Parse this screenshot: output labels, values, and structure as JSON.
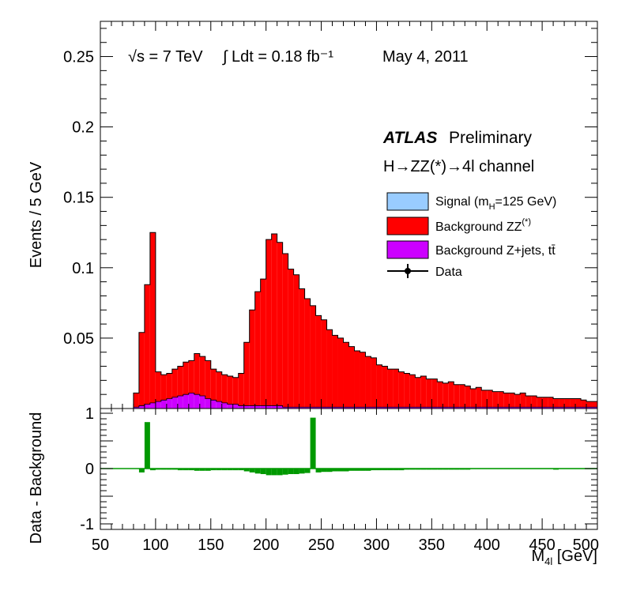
{
  "header": {
    "sqrt_s_label": "√s = 7 TeV",
    "lumi_label": "∫ Ldt = 0.18 fb⁻¹",
    "date_label": "May  4, 2011",
    "atlas_label": "ATLAS",
    "preliminary_label": "Preliminary",
    "channel_label": "H→ZZ(*)→4l channel"
  },
  "chart_data": [
    {
      "type": "bar",
      "stacked": true,
      "ylabel": "Events / 5 GeV",
      "xlim": [
        50,
        500
      ],
      "ylim": [
        0,
        0.275
      ],
      "y_ticks": [
        "0.05",
        "0.1",
        "0.15",
        "0.2",
        "0.25"
      ],
      "y_tick_values": [
        0.05,
        0.1,
        0.15,
        0.2,
        0.25
      ],
      "bin_width": 5,
      "x_bin_low": [
        80,
        85,
        90,
        95,
        100,
        105,
        110,
        115,
        120,
        125,
        130,
        135,
        140,
        145,
        150,
        155,
        160,
        165,
        170,
        175,
        180,
        185,
        190,
        195,
        200,
        205,
        210,
        215,
        220,
        225,
        230,
        235,
        240,
        245,
        250,
        255,
        260,
        265,
        270,
        275,
        280,
        285,
        290,
        295,
        300,
        305,
        310,
        315,
        320,
        325,
        330,
        335,
        340,
        345,
        350,
        355,
        360,
        365,
        370,
        375,
        380,
        385,
        390,
        395,
        400,
        405,
        410,
        415,
        420,
        425,
        430,
        435,
        440,
        445,
        450,
        455,
        460,
        465,
        470,
        475,
        480,
        485,
        490,
        495
      ],
      "series": [
        {
          "name": "Background Z+jets, tt̄",
          "color": "#cc00ff",
          "values": [
            0.001,
            0.002,
            0.003,
            0.004,
            0.005,
            0.006,
            0.007,
            0.008,
            0.009,
            0.01,
            0.011,
            0.01,
            0.009,
            0.007,
            0.006,
            0.005,
            0.004,
            0.003,
            0.003,
            0.002,
            0.002,
            0.002,
            0.002,
            0.002,
            0.002,
            0.002,
            0.002,
            0.001,
            0.001,
            0.001,
            0.001,
            0.001,
            0.001,
            0.001,
            0.001,
            0.001,
            0.001,
            0.001,
            0.001,
            0.001,
            0.001,
            0.001,
            0.001,
            0.001,
            0.001,
            0.001,
            0.001,
            0.001,
            0.001,
            0.001,
            0.001,
            0.001,
            0.001,
            0.001,
            0.001,
            0.001,
            0.001,
            0.001,
            0.001,
            0.001,
            0.001,
            0.001,
            0.001,
            0.001,
            0.001,
            0.001,
            0.001,
            0.001,
            0.001,
            0.001,
            0.001,
            0.001,
            0.001,
            0.001,
            0.001,
            0.001,
            0.001,
            0.001,
            0.001,
            0.001,
            0.001,
            0.001,
            0.001,
            0.001
          ]
        },
        {
          "name": "Background ZZ(*)",
          "color": "#ff0000",
          "values": [
            0.01,
            0.052,
            0.085,
            0.121,
            0.021,
            0.018,
            0.018,
            0.02,
            0.021,
            0.023,
            0.023,
            0.029,
            0.028,
            0.027,
            0.022,
            0.021,
            0.02,
            0.02,
            0.019,
            0.023,
            0.045,
            0.068,
            0.081,
            0.09,
            0.118,
            0.122,
            0.116,
            0.109,
            0.098,
            0.094,
            0.084,
            0.077,
            0.072,
            0.065,
            0.062,
            0.055,
            0.051,
            0.049,
            0.046,
            0.043,
            0.04,
            0.039,
            0.036,
            0.035,
            0.03,
            0.029,
            0.027,
            0.027,
            0.025,
            0.024,
            0.023,
            0.021,
            0.022,
            0.02,
            0.02,
            0.018,
            0.017,
            0.018,
            0.016,
            0.016,
            0.015,
            0.013,
            0.014,
            0.012,
            0.012,
            0.011,
            0.011,
            0.01,
            0.01,
            0.009,
            0.01,
            0.008,
            0.008,
            0.007,
            0.007,
            0.007,
            0.006,
            0.006,
            0.006,
            0.006,
            0.006,
            0.005,
            0.004,
            0.004
          ]
        },
        {
          "name": "Signal (mH=125 GeV)",
          "color": "#99ccff",
          "values": []
        }
      ],
      "legend": {
        "position": "right",
        "entries": [
          {
            "label": "Signal (m",
            "sub": "H",
            "tail": "=125 GeV)",
            "color": "#99ccff",
            "kind": "box"
          },
          {
            "label": "Background ZZ",
            "sup": "(*)",
            "tail": "",
            "color": "#ff0000",
            "kind": "box"
          },
          {
            "label": "Background Z+jets, tt̄",
            "color": "#cc00ff",
            "kind": "box"
          },
          {
            "label": "Data",
            "color": "#000000",
            "kind": "marker"
          }
        ]
      }
    },
    {
      "type": "bar",
      "ylabel": "Data - Background",
      "xlabel": "M4l [GeV]",
      "xlim": [
        50,
        500
      ],
      "ylim": [
        -1.2,
        1.2
      ],
      "x_ticks": [
        "50",
        "100",
        "150",
        "200",
        "250",
        "300",
        "350",
        "400",
        "450",
        "500"
      ],
      "x_tick_values": [
        50,
        100,
        150,
        200,
        250,
        300,
        350,
        400,
        450,
        500
      ],
      "y_ticks": [
        "1",
        "0",
        "-1"
      ],
      "y_tick_values": [
        1,
        0,
        -1
      ],
      "series": [
        {
          "name": "",
          "color": "#009900",
          "x_bin_low": [
            85,
            90,
            95,
            100,
            105,
            110,
            115,
            120,
            125,
            130,
            135,
            140,
            145,
            150,
            155,
            160,
            165,
            170,
            175,
            180,
            185,
            190,
            195,
            200,
            205,
            210,
            215,
            220,
            225,
            230,
            235,
            240,
            245,
            250,
            255,
            260,
            265,
            270,
            275,
            280,
            285,
            290,
            295,
            300,
            305,
            310,
            315,
            320,
            325,
            330,
            335,
            340,
            345,
            350,
            355,
            360,
            365,
            370,
            375,
            380,
            385,
            390,
            395,
            400,
            405,
            410,
            415,
            420,
            425,
            430,
            435,
            440,
            445,
            450,
            455,
            460,
            465,
            470,
            475,
            480,
            485,
            490,
            495
          ],
          "values": [
            -0.07,
            0.84,
            -0.03,
            -0.02,
            -0.02,
            -0.02,
            -0.02,
            -0.03,
            -0.03,
            -0.03,
            -0.04,
            -0.04,
            -0.04,
            -0.03,
            -0.03,
            -0.03,
            -0.03,
            -0.03,
            -0.03,
            -0.05,
            -0.07,
            -0.09,
            -0.1,
            -0.12,
            -0.12,
            -0.12,
            -0.11,
            -0.1,
            -0.1,
            -0.09,
            -0.08,
            0.92,
            -0.07,
            -0.06,
            -0.06,
            -0.05,
            -0.05,
            -0.05,
            -0.04,
            -0.04,
            -0.04,
            -0.04,
            -0.03,
            -0.03,
            -0.03,
            -0.03,
            -0.03,
            -0.03,
            -0.02,
            -0.02,
            -0.02,
            -0.02,
            -0.02,
            -0.02,
            -0.02,
            -0.02,
            -0.02,
            -0.02,
            -0.02,
            -0.02,
            -0.01,
            -0.01,
            -0.01,
            -0.01,
            -0.01,
            -0.01,
            -0.01,
            -0.01,
            -0.01,
            -0.01,
            -0.01,
            -0.01,
            -0.01,
            -0.01,
            -0.01,
            -0.02,
            -0.01,
            -0.01,
            -0.01,
            -0.01,
            -0.01,
            -0.01,
            -0.01
          ]
        }
      ]
    }
  ]
}
